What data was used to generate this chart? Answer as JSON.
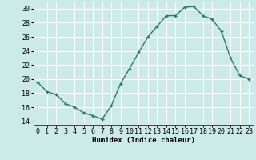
{
  "x": [
    0,
    1,
    2,
    3,
    4,
    5,
    6,
    7,
    8,
    9,
    10,
    11,
    12,
    13,
    14,
    15,
    16,
    17,
    18,
    19,
    20,
    21,
    22,
    23
  ],
  "y": [
    19.5,
    18.2,
    17.8,
    16.5,
    16.0,
    15.2,
    14.8,
    14.3,
    16.2,
    19.3,
    21.5,
    23.8,
    26.0,
    27.5,
    29.0,
    29.0,
    30.2,
    30.3,
    29.0,
    28.5,
    26.8,
    23.0,
    20.5,
    20.0
  ],
  "line_color": "#2d7a6a",
  "marker": "+",
  "marker_size": 3.5,
  "bg_color": "#cceae7",
  "grid_color": "#ffffff",
  "xlabel": "Humidex (Indice chaleur)",
  "xlim": [
    -0.5,
    23.5
  ],
  "ylim": [
    13.5,
    31.0
  ],
  "yticks": [
    14,
    16,
    18,
    20,
    22,
    24,
    26,
    28,
    30
  ],
  "xticks": [
    0,
    1,
    2,
    3,
    4,
    5,
    6,
    7,
    8,
    9,
    10,
    11,
    12,
    13,
    14,
    15,
    16,
    17,
    18,
    19,
    20,
    21,
    22,
    23
  ],
  "xlabel_fontsize": 6.5,
  "tick_fontsize": 6.0,
  "linewidth": 1.0
}
